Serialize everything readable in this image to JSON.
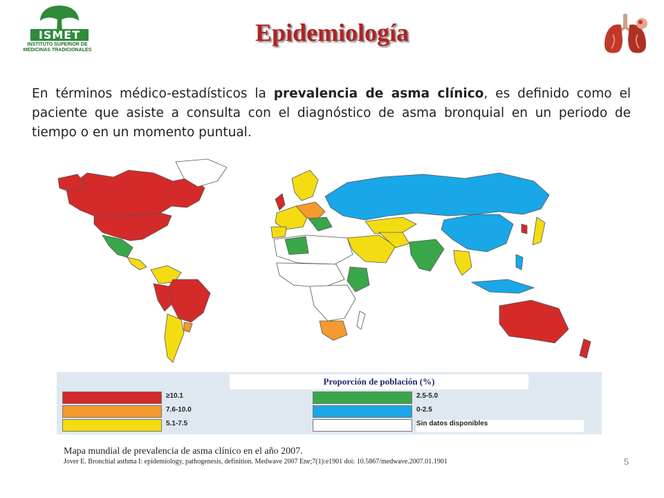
{
  "logo": {
    "name": "ISMET",
    "subtitle_line1": "INSTITUTO SUPERIOR DE",
    "subtitle_line2": "MEDICINAS TRADICIONALES",
    "color": "#2e8b3a"
  },
  "title": "Epidemiología",
  "intro": {
    "before": "En términos médico-estadísticos la ",
    "bold": "prevalencia de asma clínico",
    "after": ", es definido como el paciente que asiste a consulta con el diagnóstico de asma bronquial en un periodo de tiempo o en un momento puntual."
  },
  "map": {
    "colors": {
      "red": "#d42a2a",
      "orange": "#f59a2e",
      "yellow": "#f4dc12",
      "green": "#3aa64a",
      "blue": "#19a7e8",
      "nodata": "#ffffff"
    },
    "legend_title": "Proporción de población (%)",
    "legend": [
      {
        "label": "≥10.1",
        "color": "#d42a2a"
      },
      {
        "label": "7.6-10.0",
        "color": "#f59a2e"
      },
      {
        "label": "5.1-7.5",
        "color": "#f4dc12"
      },
      {
        "label": "2.5-5.0",
        "color": "#3aa64a"
      },
      {
        "label": "0-2.5",
        "color": "#19a7e8"
      },
      {
        "label": "Sin datos disponibles",
        "color": "#ffffff"
      }
    ]
  },
  "caption": "Mapa mundial de prevalencia de asma clínico en el año 2007.",
  "reference": "Jover E. Bronchial asthma I: epidemiology, pathogenesis, definition. Medwave 2007 Ene;7(1):e1901 doi: 10.5867/medwave.2007.01.1901",
  "page_number": "5"
}
